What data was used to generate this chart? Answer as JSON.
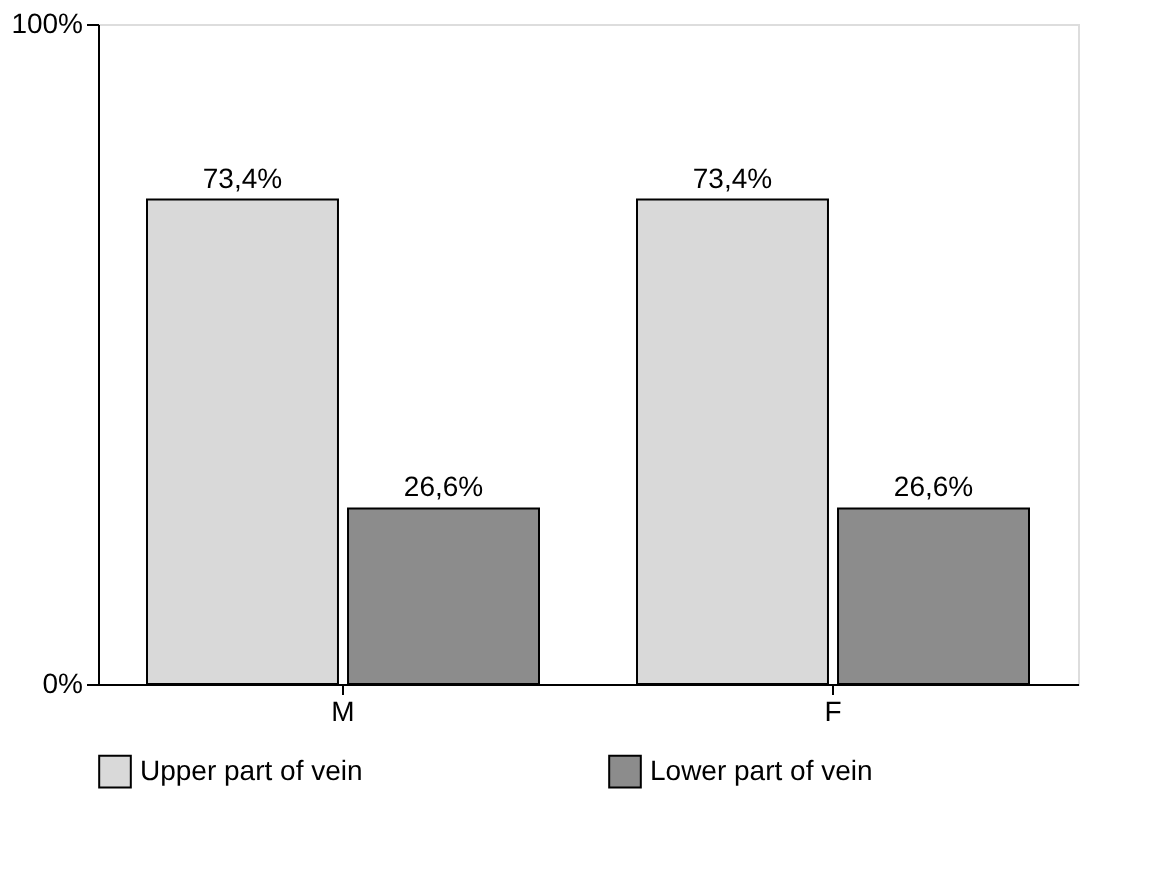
{
  "chart_data": {
    "type": "bar",
    "categories": [
      "M",
      "F"
    ],
    "series": [
      {
        "name": "Upper part of vein",
        "color": "#d9d9d9",
        "values": [
          73.4,
          73.4
        ],
        "value_labels": [
          "73,4%",
          "73,4%"
        ]
      },
      {
        "name": "Lower part of vein",
        "color": "#8c8c8c",
        "values": [
          26.6,
          26.6
        ],
        "value_labels": [
          "26,6%",
          "26,6%"
        ]
      }
    ],
    "ylim": [
      0,
      100
    ],
    "yticks": [
      {
        "value": 0,
        "label": "0%"
      },
      {
        "value": 100,
        "label": "100%"
      }
    ],
    "grid": false,
    "legend": "bottom"
  }
}
